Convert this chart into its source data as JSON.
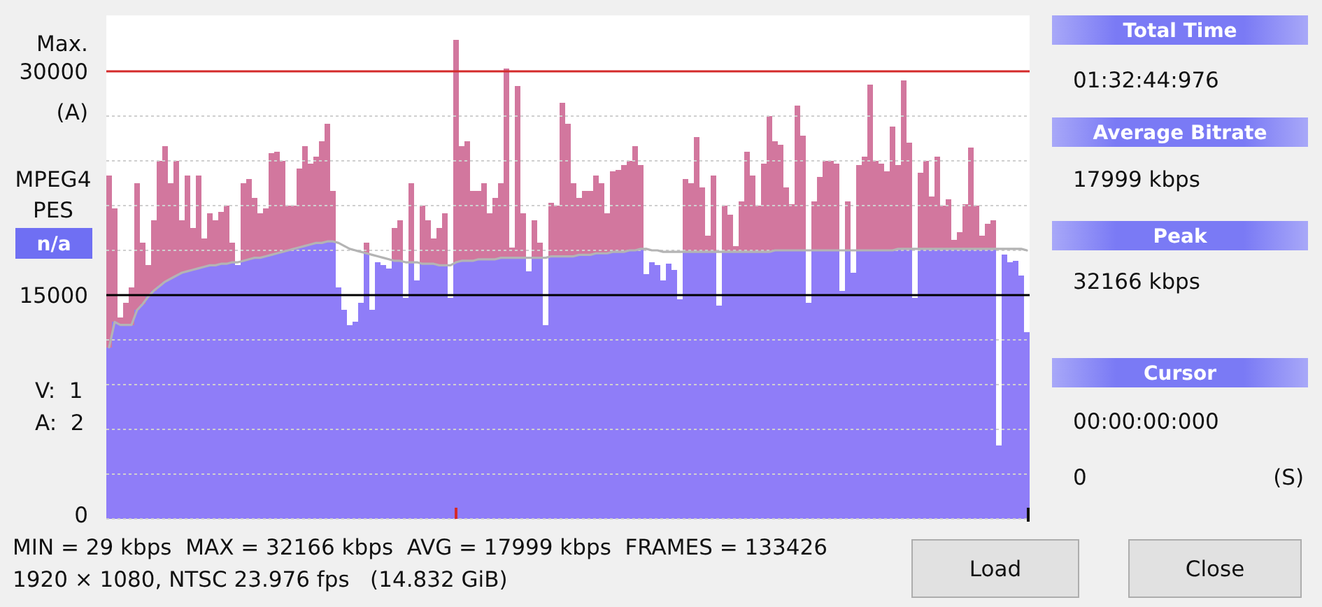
{
  "chart_data": {
    "type": "bar",
    "stacked": true,
    "categories": [
      null,
      null,
      null,
      null,
      null,
      null,
      null,
      null,
      null,
      null,
      null,
      null,
      null,
      null,
      null,
      null,
      null,
      null,
      null,
      null,
      null,
      null,
      null,
      null,
      null,
      null,
      null,
      null,
      null,
      null,
      null,
      null,
      null,
      null,
      null,
      null,
      null,
      null,
      null,
      null,
      null,
      null,
      null,
      null,
      null,
      null,
      null,
      null,
      null,
      null,
      null,
      null,
      null,
      null,
      null,
      null,
      null,
      null,
      null,
      null,
      null,
      null,
      null,
      null,
      null,
      null,
      null,
      null,
      null,
      null,
      null,
      null,
      null,
      null,
      null,
      null,
      null,
      null,
      null,
      null,
      null,
      null,
      null,
      null,
      null,
      null,
      null,
      null,
      null,
      null,
      null,
      null,
      null,
      null,
      null,
      null,
      null,
      null,
      null,
      null,
      null,
      null,
      null,
      null,
      null,
      null,
      null,
      null,
      null,
      null,
      null,
      null,
      null,
      null,
      null,
      null,
      null,
      null,
      null,
      null,
      null,
      null,
      null,
      null,
      null,
      null,
      null,
      null,
      null,
      null,
      null,
      null,
      null,
      null,
      null,
      null,
      null,
      null,
      null,
      null,
      null,
      null,
      null,
      null,
      null,
      null,
      null,
      null,
      null,
      null,
      null,
      null,
      null,
      null,
      null,
      null,
      null,
      null,
      null,
      null,
      null,
      null,
      null,
      null,
      null
    ],
    "series": [
      {
        "color": "#8f7df8",
        "values": [
          11500,
          13200,
          13000,
          13000,
          13000,
          14000,
          14400,
          14900,
          15300,
          15600,
          15900,
          16100,
          16300,
          16500,
          16600,
          16700,
          16800,
          16900,
          17000,
          17000,
          17100,
          17100,
          17200,
          17000,
          17300,
          17400,
          17500,
          17500,
          17600,
          17700,
          17800,
          17900,
          18000,
          18100,
          18200,
          18300,
          18400,
          18500,
          18500,
          18600,
          18600,
          15500,
          14000,
          13000,
          13200,
          14500,
          17800,
          14000,
          17200,
          17000,
          16800,
          17300,
          17300,
          14800,
          17200,
          16000,
          17100,
          17100,
          17100,
          17000,
          17000,
          14800,
          17200,
          17300,
          17300,
          17300,
          17400,
          17400,
          17400,
          17400,
          17500,
          17500,
          17500,
          17500,
          17500,
          16600,
          17500,
          17500,
          13000,
          17600,
          17600,
          17600,
          17600,
          17600,
          17700,
          17700,
          17700,
          17800,
          17800,
          17800,
          17900,
          17900,
          17900,
          18000,
          18000,
          18100,
          16400,
          17200,
          17000,
          16000,
          17100,
          16700,
          14700,
          17900,
          17900,
          17900,
          17900,
          17900,
          17900,
          14300,
          17900,
          17900,
          17900,
          17900,
          17900,
          17900,
          17900,
          17900,
          17900,
          18000,
          18000,
          18000,
          18000,
          18000,
          18000,
          14500,
          18000,
          18000,
          18000,
          18000,
          18000,
          15300,
          18000,
          16500,
          18000,
          18000,
          18000,
          18000,
          18000,
          18000,
          18000,
          18100,
          18100,
          18100,
          14800,
          18100,
          18100,
          18100,
          18100,
          18100,
          18100,
          18100,
          18100,
          18100,
          18100,
          18100,
          18100,
          18100,
          18100,
          4900,
          17700,
          17200,
          17300,
          16300,
          12500
        ]
      },
      {
        "color": "#d2779e",
        "values": [
          11500,
          7600,
          500,
          1500,
          2500,
          8500,
          4100,
          2100,
          4700,
          8400,
          9100,
          6400,
          7700,
          3500,
          6400,
          2800,
          6200,
          1900,
          3500,
          3000,
          3500,
          3900,
          1300,
          0,
          5200,
          5400,
          4000,
          3000,
          3200,
          6800,
          6800,
          6100,
          3000,
          2900,
          5300,
          6700,
          5400,
          5800,
          6800,
          7900,
          3400,
          0,
          0,
          0,
          0,
          0,
          700,
          0,
          0,
          0,
          0,
          2200,
          2700,
          0,
          5300,
          0,
          3900,
          2900,
          1700,
          2500,
          3500,
          0,
          14900,
          7700,
          8000,
          4700,
          4600,
          5100,
          3100,
          4100,
          5000,
          12700,
          700,
          11500,
          3000,
          0,
          2500,
          1000,
          0,
          3600,
          3400,
          10300,
          8900,
          4900,
          3800,
          4300,
          4300,
          5200,
          4700,
          2700,
          5400,
          5500,
          5800,
          6000,
          7000,
          5600,
          0,
          0,
          0,
          0,
          0,
          0,
          0,
          4900,
          4600,
          7700,
          4300,
          1100,
          5100,
          0,
          3100,
          2500,
          400,
          3400,
          6700,
          5100,
          3100,
          5900,
          9100,
          7300,
          7100,
          4200,
          3100,
          9700,
          7700,
          0,
          3300,
          4900,
          6000,
          6000,
          5800,
          0,
          3300,
          0,
          5700,
          6300,
          11100,
          6000,
          5800,
          5300,
          8300,
          5600,
          11300,
          7100,
          0,
          5100,
          5900,
          3500,
          6200,
          2900,
          3300,
          600,
          1100,
          3000,
          6800,
          2900,
          900,
          1700,
          1900,
          0,
          0,
          0,
          0,
          0,
          0
        ]
      },
      {
        "type": "line",
        "color": "#b4b4b4",
        "values": [
          11500,
          13200,
          13000,
          13000,
          13000,
          14000,
          14400,
          14900,
          15300,
          15600,
          15900,
          16100,
          16300,
          16500,
          16600,
          16700,
          16800,
          16900,
          17000,
          17000,
          17100,
          17100,
          17200,
          17200,
          17300,
          17400,
          17500,
          17500,
          17600,
          17700,
          17800,
          17900,
          18000,
          18100,
          18200,
          18300,
          18400,
          18500,
          18500,
          18600,
          18600,
          18500,
          18300,
          18100,
          18000,
          17900,
          17800,
          17700,
          17600,
          17500,
          17400,
          17300,
          17300,
          17200,
          17200,
          17200,
          17100,
          17100,
          17100,
          17000,
          17000,
          17000,
          17200,
          17300,
          17300,
          17300,
          17400,
          17400,
          17400,
          17400,
          17500,
          17500,
          17500,
          17500,
          17500,
          17500,
          17500,
          17500,
          17500,
          17600,
          17600,
          17600,
          17600,
          17600,
          17700,
          17700,
          17700,
          17800,
          17800,
          17800,
          17900,
          17900,
          17900,
          18000,
          18000,
          18100,
          18100,
          18000,
          18000,
          17900,
          17900,
          17900,
          17900,
          17900,
          17900,
          17900,
          17900,
          17900,
          17900,
          17900,
          17900,
          17900,
          17900,
          17900,
          17900,
          17900,
          17900,
          17900,
          17900,
          18000,
          18000,
          18000,
          18000,
          18000,
          18000,
          18000,
          18000,
          18000,
          18000,
          18000,
          18000,
          18000,
          18000,
          18000,
          18000,
          18000,
          18000,
          18000,
          18000,
          18000,
          18000,
          18100,
          18100,
          18100,
          18100,
          18100,
          18100,
          18100,
          18100,
          18100,
          18100,
          18100,
          18100,
          18100,
          18100,
          18100,
          18100,
          18100,
          18100,
          18100,
          18100,
          18100,
          18100,
          18100,
          18000
        ]
      }
    ],
    "ylim": [
      0,
      33750
    ],
    "yticks": [
      0,
      {
        "value": 3000,
        "label": null
      },
      {
        "value": 6000,
        "label": null
      },
      {
        "value": 9000,
        "label": null
      },
      {
        "value": 12000,
        "label": null
      },
      15000,
      {
        "value": 18000,
        "label": null
      },
      {
        "value": 21000,
        "label": null
      },
      {
        "value": 24000,
        "label": null
      },
      {
        "value": 27000,
        "label": null
      },
      30000
    ],
    "grid": "y",
    "ref_lines": [
      {
        "axis": "y",
        "value": 30000,
        "label": "Max.",
        "color": "#d42a2a"
      },
      {
        "axis": "y",
        "value": 15000,
        "color": "#000000"
      }
    ],
    "annotations": [
      "(A)",
      "MPEG4 PES",
      "n/a",
      "V:  1\nA:  2",
      "Total Time",
      "01:32:44:976",
      "Average Bitrate",
      "17999 kbps",
      "Peak",
      "32166 kbps",
      "Cursor",
      "00:00:00:000",
      "0",
      "(S)",
      "MIN = 29 kbps  MAX = 32166 kbps  AVG = 17999 kbps  FRAMES = 133426",
      "1920 × 1080, NTSC 23.976 fps   (14.832 GiB)",
      "Load",
      "Close"
    ]
  }
}
